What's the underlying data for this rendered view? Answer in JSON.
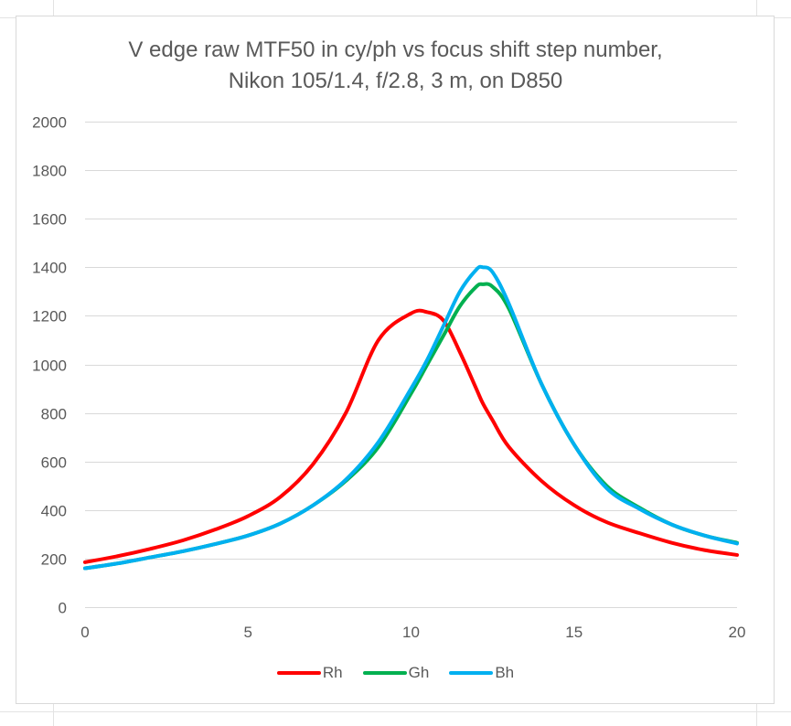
{
  "chart_data": {
    "type": "line",
    "title": [
      "V edge raw MTF50 in cy/ph vs focus shift step number,",
      "Nikon 105/1.4, f/2.8, 3 m, on D850"
    ],
    "xlabel": "",
    "ylabel": "",
    "xlim": [
      0,
      20
    ],
    "ylim": [
      0,
      2000
    ],
    "xticks": [
      0,
      5,
      10,
      15,
      20
    ],
    "yticks": [
      0,
      200,
      400,
      600,
      800,
      1000,
      1200,
      1400,
      1600,
      1800,
      2000
    ],
    "grid": "horizontal",
    "legend_position": "bottom",
    "x": [
      0,
      1,
      2,
      3,
      4,
      5,
      6,
      7,
      8,
      9,
      10,
      10.5,
      11,
      11.5,
      12,
      12.2,
      12.5,
      13,
      14,
      15,
      16,
      17,
      18,
      19,
      20
    ],
    "series": [
      {
        "name": "Rh",
        "color": "#ff0000",
        "values": [
          185,
          210,
          240,
          275,
          320,
          375,
          455,
          590,
          800,
          1100,
          1210,
          1215,
          1180,
          1050,
          900,
          840,
          770,
          660,
          520,
          420,
          350,
          305,
          265,
          235,
          215
        ]
      },
      {
        "name": "Gh",
        "color": "#00b050",
        "values": [
          160,
          180,
          205,
          230,
          260,
          295,
          345,
          420,
          520,
          660,
          880,
          1000,
          1120,
          1240,
          1320,
          1330,
          1320,
          1230,
          920,
          670,
          500,
          410,
          340,
          295,
          265
        ]
      },
      {
        "name": "Bh",
        "color": "#00b0f0",
        "values": [
          160,
          180,
          205,
          230,
          260,
          295,
          345,
          420,
          525,
          680,
          900,
          1020,
          1160,
          1300,
          1390,
          1400,
          1380,
          1250,
          920,
          670,
          490,
          405,
          340,
          295,
          262
        ]
      }
    ]
  }
}
